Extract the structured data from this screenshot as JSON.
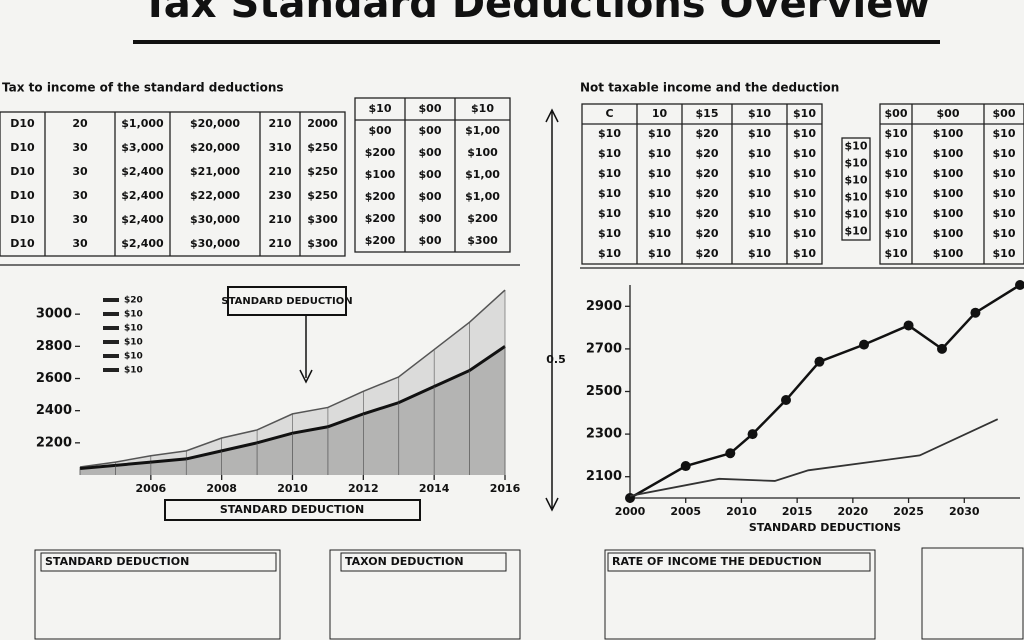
{
  "title": "Tax Standard Deductions Overview",
  "left_caption": "Tax to income of the standard deductions",
  "right_caption": "Not taxable income and the deduction",
  "tables": [
    {
      "rows": [
        [
          "D10",
          "20",
          "$1,000",
          "$20,000",
          "210",
          "2000"
        ],
        [
          "D10",
          "30",
          "$3,000",
          "$20,000",
          "310",
          "$250"
        ],
        [
          "D10",
          "30",
          "$2,400",
          "$21,000",
          "210",
          "$250"
        ],
        [
          "D10",
          "30",
          "$2,400",
          "$22,000",
          "230",
          "$250"
        ],
        [
          "D10",
          "30",
          "$2,400",
          "$30,000",
          "210",
          "$300"
        ],
        [
          "D10",
          "30",
          "$2,400",
          "$30,000",
          "210",
          "$300"
        ]
      ]
    },
    {
      "header": [
        "$10",
        "$00",
        "$10"
      ],
      "rows": [
        [
          "$00",
          "$00",
          "$1,00"
        ],
        [
          "$200",
          "$00",
          "$100"
        ],
        [
          "$100",
          "$00",
          "$1,00"
        ],
        [
          "$200",
          "$00",
          "$1,00"
        ],
        [
          "$200",
          "$00",
          "$200"
        ],
        [
          "$200",
          "$00",
          "$300"
        ]
      ]
    },
    {
      "header": [
        "C",
        "10",
        "$15",
        "$10",
        "$10"
      ],
      "rows": [
        [
          "$10",
          "$10",
          "$20",
          "$10",
          "$10"
        ],
        [
          "$10",
          "$10",
          "$20",
          "$10",
          "$10"
        ],
        [
          "$10",
          "$10",
          "$20",
          "$10",
          "$10"
        ],
        [
          "$10",
          "$10",
          "$20",
          "$10",
          "$10"
        ],
        [
          "$10",
          "$10",
          "$20",
          "$10",
          "$10"
        ],
        [
          "$10",
          "$10",
          "$20",
          "$10",
          "$10"
        ],
        [
          "$10",
          "$10",
          "$20",
          "$10",
          "$10"
        ]
      ]
    },
    {
      "rows": [
        [
          "$10"
        ],
        [
          "$10"
        ],
        [
          "$10"
        ],
        [
          "$10"
        ],
        [
          "$10"
        ],
        [
          "$10"
        ]
      ]
    },
    {
      "header": [
        "$00",
        "$00",
        "$00"
      ],
      "rows": [
        [
          "$10",
          "$100",
          "$10"
        ],
        [
          "$10",
          "$100",
          "$10"
        ],
        [
          "$10",
          "$100",
          "$10"
        ],
        [
          "$10",
          "$100",
          "$10"
        ],
        [
          "$10",
          "$100",
          "$10"
        ],
        [
          "$10",
          "$100",
          "$10"
        ],
        [
          "$10",
          "$100",
          "$10"
        ]
      ]
    }
  ],
  "vertical_label": "0.5",
  "bottom_panels": [
    "STANDARD DEDUCTION",
    "TAXON DEDUCTION",
    "RATE OF INCOME THE DEDUCTION"
  ],
  "chart_data": [
    {
      "type": "area",
      "annotation": "STANDARD DEDUCTION",
      "footer": "STANDARD DEDUCTION",
      "legend": [
        "$20",
        "$10",
        "$10",
        "$10",
        "$10",
        "$10"
      ],
      "x": [
        2004,
        2005,
        2006,
        2007,
        2008,
        2009,
        2010,
        2011,
        2012,
        2013,
        2014,
        2015,
        2016
      ],
      "xlim": [
        2004,
        2016
      ],
      "xticks": [
        2006,
        2008,
        2010,
        2012,
        2014,
        2016
      ],
      "ylim": [
        2000,
        3200
      ],
      "yticks": [
        2200,
        2400,
        2600,
        2800,
        3000
      ],
      "series": [
        {
          "color": "#555555",
          "values": [
            2050,
            2080,
            2120,
            2150,
            2230,
            2280,
            2380,
            2420,
            2520,
            2610,
            2780,
            2950,
            3150
          ]
        },
        {
          "color": "#111111",
          "values": [
            2040,
            2060,
            2080,
            2100,
            2150,
            2200,
            2260,
            2300,
            2380,
            2450,
            2550,
            2650,
            2800
          ]
        }
      ]
    },
    {
      "type": "line",
      "xlabel": "STANDARD DEDUCTIONS",
      "xlim": [
        2000,
        2035
      ],
      "xticks": [
        2000,
        2005,
        2010,
        2015,
        2020,
        2025,
        2030
      ],
      "ylim": [
        2000,
        3000
      ],
      "yticks": [
        2100,
        2300,
        2500,
        2700,
        2900
      ],
      "series": [
        {
          "color": "#111111",
          "x": [
            2000,
            2005,
            2009,
            2011,
            2014,
            2017,
            2021,
            2025,
            2028,
            2031,
            2035
          ],
          "values": [
            2000,
            2150,
            2210,
            2300,
            2460,
            2640,
            2720,
            2810,
            2700,
            2870,
            3000
          ]
        },
        {
          "color": "#333333",
          "x": [
            2000,
            2008,
            2013,
            2016,
            2026,
            2033
          ],
          "values": [
            2010,
            2090,
            2080,
            2130,
            2200,
            2370
          ]
        }
      ]
    }
  ]
}
